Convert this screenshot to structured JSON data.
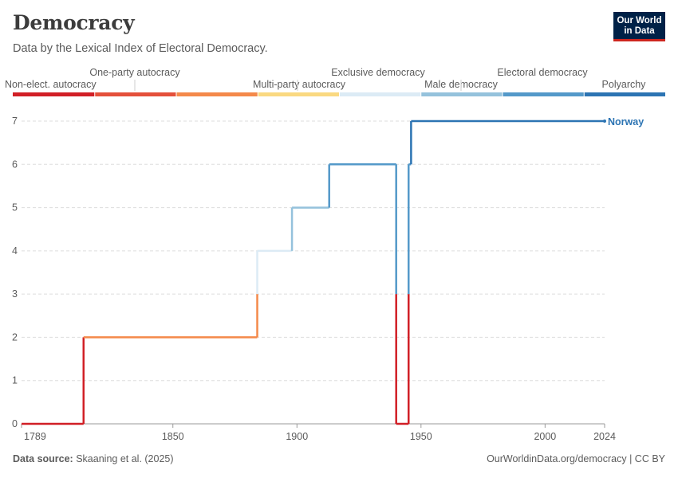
{
  "header": {
    "title": "Democracy",
    "subtitle": "Data by the Lexical Index of Electoral Democracy.",
    "logo_line1": "Our World",
    "logo_line2": "in Data"
  },
  "footer": {
    "source_label": "Data source:",
    "source_text": "Skaaning et al. (2025)",
    "link_text": "OurWorldinData.org/democracy | CC BY"
  },
  "legend": {
    "bins": [
      {
        "label": "Non-elect. autocracy",
        "color": "#d11f26"
      },
      {
        "label": "One-party autocracy",
        "color": "#e4503b"
      },
      {
        "label": "Multi-party autocracy",
        "color": "#f4894a"
      },
      {
        "label": "Exclusive democracy",
        "color": "#fad981"
      },
      {
        "label": "Male democracy",
        "color": "#dcebf5"
      },
      {
        "label": "Electoral democracy",
        "color": "#95c2dc"
      },
      {
        "label": "Polyarchy",
        "color": "#5499c9"
      },
      {
        "label": "",
        "color": "#2c74b3"
      }
    ]
  },
  "chart_data": {
    "type": "line",
    "title": "Democracy",
    "subtitle": "Data by the Lexical Index of Electoral Democracy.",
    "xlabel": "",
    "ylabel": "",
    "xlim": [
      1789,
      2024
    ],
    "ylim": [
      0,
      7
    ],
    "x_ticks": [
      "1789",
      "1850",
      "1900",
      "1950",
      "2000",
      "2024"
    ],
    "y_ticks": [
      "0",
      "1",
      "2",
      "3",
      "4",
      "5",
      "6",
      "7"
    ],
    "grid": "horizontal dashed",
    "series": [
      {
        "name": "Norway",
        "color": "#2c74b3",
        "steps": [
          {
            "x": 1789,
            "y": 0
          },
          {
            "x": 1814,
            "y": 2
          },
          {
            "x": 1884,
            "y": 4
          },
          {
            "x": 1898,
            "y": 5
          },
          {
            "x": 1913,
            "y": 6
          },
          {
            "x": 1940,
            "y": 0
          },
          {
            "x": 1945,
            "y": 6
          },
          {
            "x": 1946,
            "y": 7
          },
          {
            "x": 2024,
            "y": 7
          }
        ]
      }
    ]
  }
}
